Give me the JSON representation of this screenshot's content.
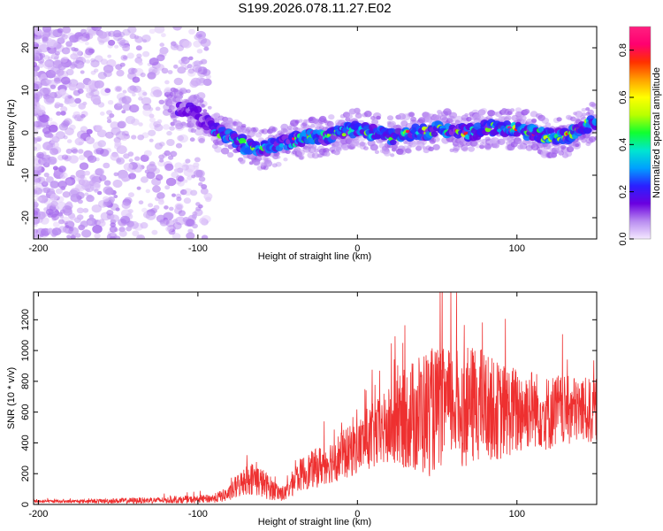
{
  "figure": {
    "title": "S199.2026.078.11.27.E02"
  },
  "chart_data": [
    {
      "type": "heatmap",
      "title": "S199.2026.078.11.27.E02",
      "xlabel": "Height of straight line (km)",
      "ylabel": "Frequency (Hz)",
      "xlim": [
        -203,
        150
      ],
      "ylim": [
        -25,
        25
      ],
      "xticks": [
        "-200",
        "-100",
        "0",
        "100"
      ],
      "yticks": [
        "-20",
        "-10",
        "0",
        "10",
        "20"
      ],
      "colorbar": {
        "label": "Normalized spectral amplitude",
        "range": [
          0,
          0.9
        ],
        "ticks": [
          "0.0",
          "0.2",
          "0.4",
          "0.6",
          "0.8"
        ],
        "colors": [
          "#f5e8ff",
          "#b98cf0",
          "#6a00e0",
          "#2a20ff",
          "#00a0ff",
          "#00e6d0",
          "#10ff30",
          "#b8ff00",
          "#ffff00",
          "#ffa000",
          "#ff3000",
          "#ff0070",
          "#ff2080"
        ]
      },
      "ridge": {
        "x": [
          -110,
          -100,
          -90,
          -80,
          -70,
          -60,
          -50,
          -40,
          -30,
          -20,
          -10,
          0,
          10,
          20,
          30,
          40,
          50,
          60,
          70,
          80,
          90,
          100,
          110,
          120,
          130,
          140,
          150
        ],
        "freq": [
          6,
          4,
          1,
          -1,
          -3,
          -4,
          -3,
          -2,
          -1,
          -1,
          0,
          1,
          0,
          -1,
          0,
          0,
          1,
          0,
          0,
          1,
          1,
          1,
          0,
          -1,
          -1,
          1,
          3
        ]
      }
    },
    {
      "type": "line",
      "xlabel": "Height of straight line (km)",
      "ylabel": "SNR (10 * v/v)",
      "xlim": [
        -203,
        150
      ],
      "ylim": [
        0,
        1380
      ],
      "xticks": [
        "-200",
        "-100",
        "0",
        "100"
      ],
      "yticks": [
        "0",
        "200",
        "400",
        "600",
        "800",
        "1000",
        "1200"
      ],
      "color": "#ee3030",
      "envelope": {
        "x": [
          -203,
          -180,
          -160,
          -140,
          -120,
          -100,
          -90,
          -80,
          -75,
          -70,
          -65,
          -60,
          -55,
          -50,
          -45,
          -40,
          -35,
          -30,
          -25,
          -20,
          -15,
          -10,
          -5,
          0,
          5,
          10,
          15,
          20,
          25,
          30,
          35,
          40,
          45,
          50,
          55,
          60,
          65,
          70,
          75,
          80,
          85,
          90,
          95,
          100,
          105,
          110,
          115,
          120,
          125,
          130,
          135,
          140,
          145,
          150
        ],
        "mean": [
          20,
          20,
          22,
          25,
          28,
          32,
          40,
          70,
          120,
          160,
          170,
          140,
          110,
          80,
          70,
          150,
          200,
          220,
          240,
          270,
          290,
          320,
          340,
          370,
          420,
          440,
          470,
          500,
          520,
          560,
          570,
          590,
          600,
          620,
          640,
          650,
          630,
          620,
          660,
          640,
          620,
          600,
          610,
          600,
          620,
          630,
          600,
          590,
          620,
          600,
          610,
          620,
          600,
          620
        ],
        "amp": [
          10,
          10,
          15,
          20,
          20,
          25,
          30,
          50,
          80,
          100,
          110,
          100,
          80,
          60,
          50,
          90,
          110,
          120,
          130,
          140,
          150,
          160,
          170,
          170,
          200,
          220,
          240,
          260,
          300,
          330,
          380,
          420,
          420,
          400,
          380,
          360,
          380,
          400,
          380,
          360,
          330,
          320,
          300,
          300,
          280,
          260,
          240,
          250,
          240,
          230,
          230,
          220,
          220,
          200
        ]
      }
    }
  ]
}
